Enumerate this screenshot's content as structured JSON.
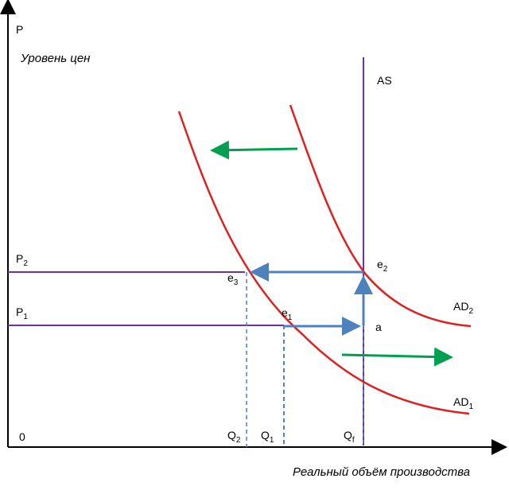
{
  "axes": {
    "y_axis_label": "P",
    "y_axis_title": "Уровень цен",
    "x_axis_title": "Реальный объём производства",
    "origin_label": "0"
  },
  "curves": {
    "as_label": "AS",
    "ad2_label": "AD",
    "ad2_sub": "2",
    "ad1_label": "AD",
    "ad1_sub": "1"
  },
  "prices": {
    "p2_label": "P",
    "p2_sub": "2",
    "p1_label": "P",
    "p1_sub": "1"
  },
  "quantities": {
    "q2_label": "Q",
    "q2_sub": "2",
    "q1_label": "Q",
    "q1_sub": "1",
    "qf_label": "Q",
    "qf_sub": "f"
  },
  "points": {
    "e1_label": "e",
    "e1_sub": "1",
    "e2_label": "e",
    "e2_sub": "2",
    "e3_label": "e",
    "e3_sub": "3",
    "a_label": "a"
  },
  "colors": {
    "axis": "#000000",
    "as_line": "#7030a0",
    "price_line": "#7030a0",
    "ad_curve": "#e02020",
    "path_arrow": "#4f81bd",
    "shift_arrow": "#00a050",
    "dashed": "#4f81bd"
  }
}
